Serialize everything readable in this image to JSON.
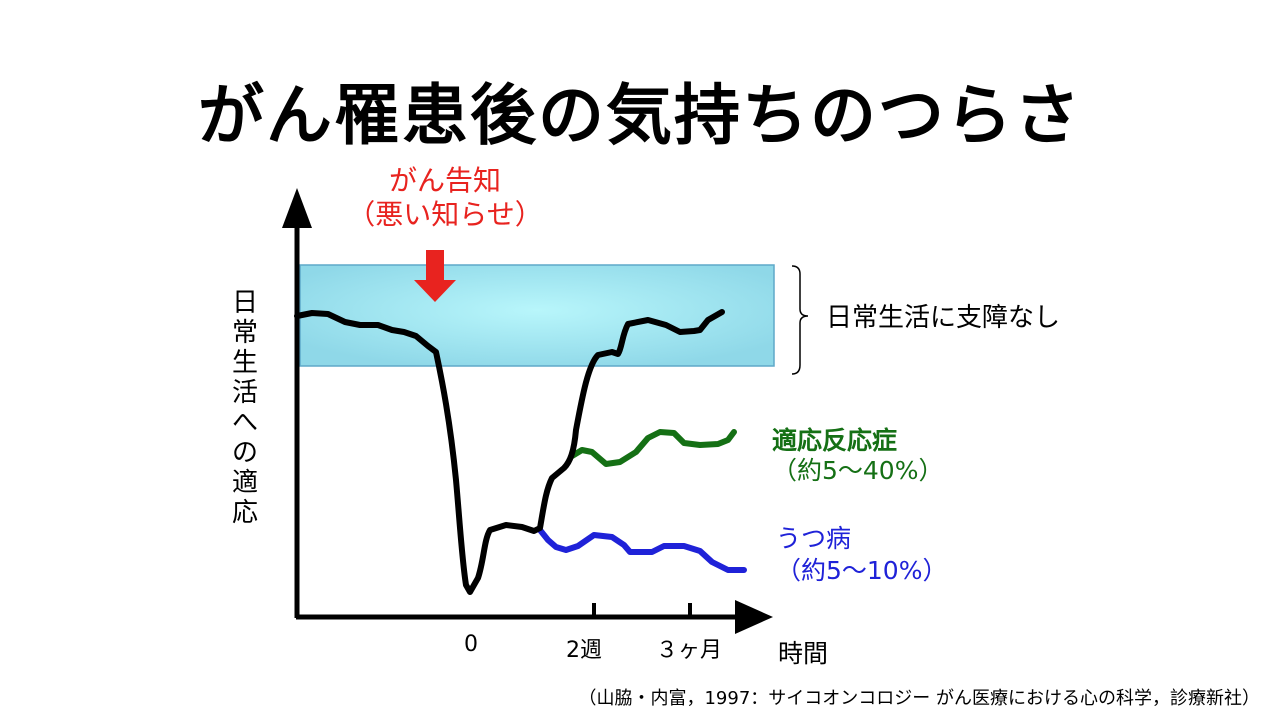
{
  "title": "がん罹患後の気持ちのつらさ",
  "announcement": {
    "line1": "がん告知",
    "line2": "（悪い知らせ）",
    "color": "#e8231f"
  },
  "y_axis_label": [
    "日",
    "常",
    "生",
    "活",
    "へ",
    "の",
    "適",
    "応"
  ],
  "normal_zone_label": "日常生活に支障なし",
  "x_axis": {
    "label": "時間",
    "ticks": [
      "0",
      "2週",
      "３ヶ月"
    ]
  },
  "outcomes": {
    "adjustment": {
      "name": "適応反応症",
      "rate": "（約5～40%）",
      "color": "#157015"
    },
    "depression": {
      "name": "うつ病",
      "rate": "（約5～10%）",
      "color": "#1f22d8"
    }
  },
  "main_line_color": "#000000",
  "zone_color": "#a8f0f6",
  "source": "（山脇・内富，1997：サイコオンコロジー がん医療における心の科学，診療新社）"
}
